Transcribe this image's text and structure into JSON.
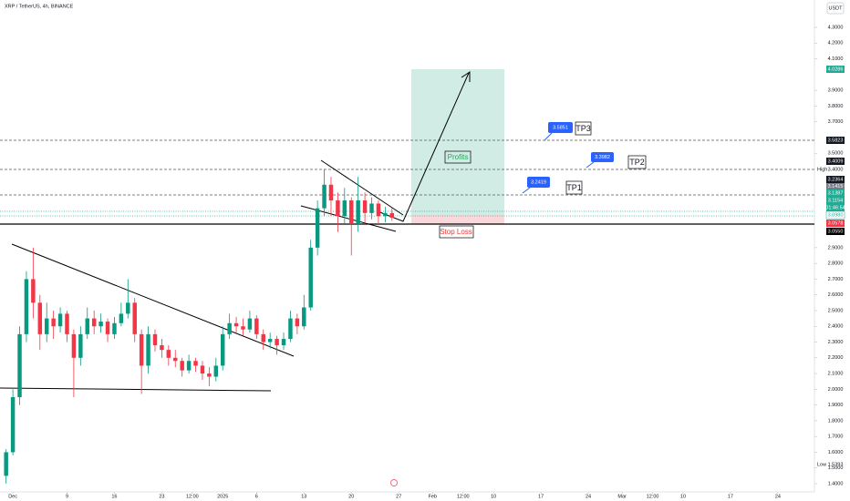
{
  "chart_data": {
    "type": "candlestick",
    "title": "XRP / TetherUS, 4h, BINANCE",
    "currency_button": "USDT",
    "x": [
      -1,
      0,
      1,
      2,
      3,
      4,
      5,
      6,
      7,
      8,
      9,
      10,
      11,
      12,
      13,
      14,
      15,
      16,
      17,
      18,
      19,
      20,
      21,
      22,
      23,
      24,
      25,
      26,
      27,
      28,
      29,
      30,
      31,
      32,
      33,
      34,
      35,
      36,
      37,
      38,
      39,
      40,
      41,
      42,
      43,
      44,
      45,
      46,
      47,
      48,
      49,
      50,
      51,
      52,
      53,
      54,
      55,
      56
    ],
    "open": [
      1.45,
      1.6,
      1.95,
      2.35,
      2.7,
      2.55,
      2.35,
      2.45,
      2.4,
      2.48,
      2.35,
      2.2,
      2.35,
      2.45,
      2.4,
      2.43,
      2.35,
      2.42,
      2.48,
      2.55,
      2.35,
      2.15,
      2.35,
      2.28,
      2.25,
      2.2,
      2.18,
      2.12,
      2.18,
      2.15,
      2.1,
      2.08,
      2.15,
      2.35,
      2.42,
      2.4,
      2.38,
      2.45,
      2.35,
      2.3,
      2.32,
      2.28,
      2.32,
      2.45,
      2.4,
      2.52,
      2.9,
      3.15,
      3.3,
      3.2,
      3.1,
      3.2,
      3.05,
      3.2,
      3.12,
      3.18,
      3.1,
      3.12
    ],
    "high": [
      1.62,
      2.0,
      2.4,
      2.75,
      2.9,
      2.6,
      2.55,
      2.5,
      2.52,
      2.5,
      2.38,
      2.4,
      2.52,
      2.5,
      2.48,
      2.45,
      2.46,
      2.55,
      2.7,
      2.58,
      2.38,
      2.4,
      2.38,
      2.32,
      2.28,
      2.25,
      2.2,
      2.22,
      2.2,
      2.18,
      2.14,
      2.2,
      2.4,
      2.48,
      2.46,
      2.45,
      2.5,
      2.47,
      2.38,
      2.36,
      2.34,
      2.36,
      2.5,
      2.48,
      2.6,
      2.95,
      3.2,
      3.4,
      3.35,
      3.25,
      3.28,
      3.22,
      3.35,
      3.25,
      3.22,
      3.2,
      3.16,
      3.15
    ],
    "low": [
      1.4,
      1.58,
      1.9,
      2.3,
      2.45,
      2.25,
      2.3,
      2.32,
      2.36,
      2.3,
      1.95,
      2.15,
      2.32,
      2.35,
      2.36,
      2.3,
      2.32,
      2.4,
      2.45,
      2.3,
      1.97,
      2.1,
      2.24,
      2.2,
      2.15,
      2.14,
      2.08,
      2.1,
      2.11,
      2.06,
      2.02,
      2.05,
      2.12,
      2.32,
      2.36,
      2.34,
      2.36,
      2.32,
      2.25,
      2.26,
      2.22,
      2.25,
      2.3,
      2.35,
      2.38,
      2.5,
      2.85,
      3.1,
      3.1,
      3.0,
      3.05,
      2.85,
      3.0,
      3.05,
      3.08,
      3.05,
      3.06,
      3.07
    ],
    "close": [
      1.6,
      1.95,
      2.35,
      2.7,
      2.55,
      2.35,
      2.45,
      2.4,
      2.48,
      2.35,
      2.2,
      2.35,
      2.45,
      2.4,
      2.43,
      2.35,
      2.42,
      2.48,
      2.55,
      2.35,
      2.15,
      2.35,
      2.28,
      2.25,
      2.2,
      2.18,
      2.12,
      2.18,
      2.15,
      2.1,
      2.08,
      2.15,
      2.35,
      2.42,
      2.4,
      2.38,
      2.45,
      2.35,
      2.3,
      2.32,
      2.28,
      2.32,
      2.45,
      2.4,
      2.52,
      2.9,
      3.15,
      3.3,
      3.2,
      3.1,
      3.2,
      3.05,
      3.2,
      3.12,
      3.18,
      3.1,
      3.12,
      3.09
    ],
    "up_color": "#089981",
    "down_color": "#f23645",
    "xlim": [
      -1.9,
      118
    ],
    "ylim": [
      1.4,
      4.3
    ],
    "xticks": [
      {
        "value": 0,
        "label": "Dec"
      },
      {
        "value": 8,
        "label": "9"
      },
      {
        "value": 15,
        "label": "16"
      },
      {
        "value": 22,
        "label": "23"
      },
      {
        "value": 26.5,
        "label": "12:00"
      },
      {
        "value": 31,
        "label": "2025"
      },
      {
        "value": 36,
        "label": "6"
      },
      {
        "value": 43,
        "label": "13"
      },
      {
        "value": 50,
        "label": "20"
      },
      {
        "value": 57,
        "label": "27"
      },
      {
        "value": 62,
        "label": "Feb"
      },
      {
        "value": 66.5,
        "label": "12:00"
      },
      {
        "value": 71,
        "label": "10"
      },
      {
        "value": 78,
        "label": "17"
      },
      {
        "value": 85,
        "label": "24"
      },
      {
        "value": 90,
        "label": "Mar"
      },
      {
        "value": 94.5,
        "label": "12:00"
      },
      {
        "value": 99,
        "label": "10"
      },
      {
        "value": 106,
        "label": "17"
      },
      {
        "value": 113,
        "label": "24"
      }
    ],
    "yticks": [
      {
        "value": 4.3,
        "label": "4.3000"
      },
      {
        "value": 4.2,
        "label": "4.2000"
      },
      {
        "value": 4.1,
        "label": "4.1000"
      },
      {
        "value": 3.9,
        "label": "3.9000"
      },
      {
        "value": 3.8,
        "label": "3.8000"
      },
      {
        "value": 3.7,
        "label": "3.7000"
      },
      {
        "value": 3.5,
        "label": "3.5000"
      },
      {
        "value": 2.9,
        "label": "2.9000"
      },
      {
        "value": 2.8,
        "label": "2.8000"
      },
      {
        "value": 2.7,
        "label": "2.7000"
      },
      {
        "value": 2.6,
        "label": "2.6000"
      },
      {
        "value": 2.5,
        "label": "2.5000"
      },
      {
        "value": 2.4,
        "label": "2.4000"
      },
      {
        "value": 2.3,
        "label": "2.3000"
      },
      {
        "value": 2.2,
        "label": "2.2000"
      },
      {
        "value": 2.1,
        "label": "2.1000"
      },
      {
        "value": 2.0,
        "label": "2.0000"
      },
      {
        "value": 1.9,
        "label": "1.9000"
      },
      {
        "value": 1.8,
        "label": "1.8000"
      },
      {
        "value": 1.7,
        "label": "1.7000"
      },
      {
        "value": 1.6,
        "label": "1.6000"
      },
      {
        "value": 1.5,
        "label": "1.5000"
      },
      {
        "value": 1.4,
        "label": "1.4000"
      }
    ],
    "badges": [
      "4.0286",
      "3.5823",
      "3.4009",
      "3.4000",
      "3.2364",
      "3.1415",
      "3.1387",
      "3.1154",
      "01:46:54",
      "3.0980",
      "3.0578",
      "3.0550",
      "1.5393"
    ],
    "high_label": "High",
    "low_label": "Low",
    "annotations": {
      "profits": "Profits",
      "stop_loss": "Stop Loss",
      "tp1": "TP1",
      "tp2": "TP2",
      "tp3": "TP3",
      "tp1_price": "3.2419",
      "tp2_price": "3.3982",
      "tp3_price": "3.5851"
    }
  }
}
